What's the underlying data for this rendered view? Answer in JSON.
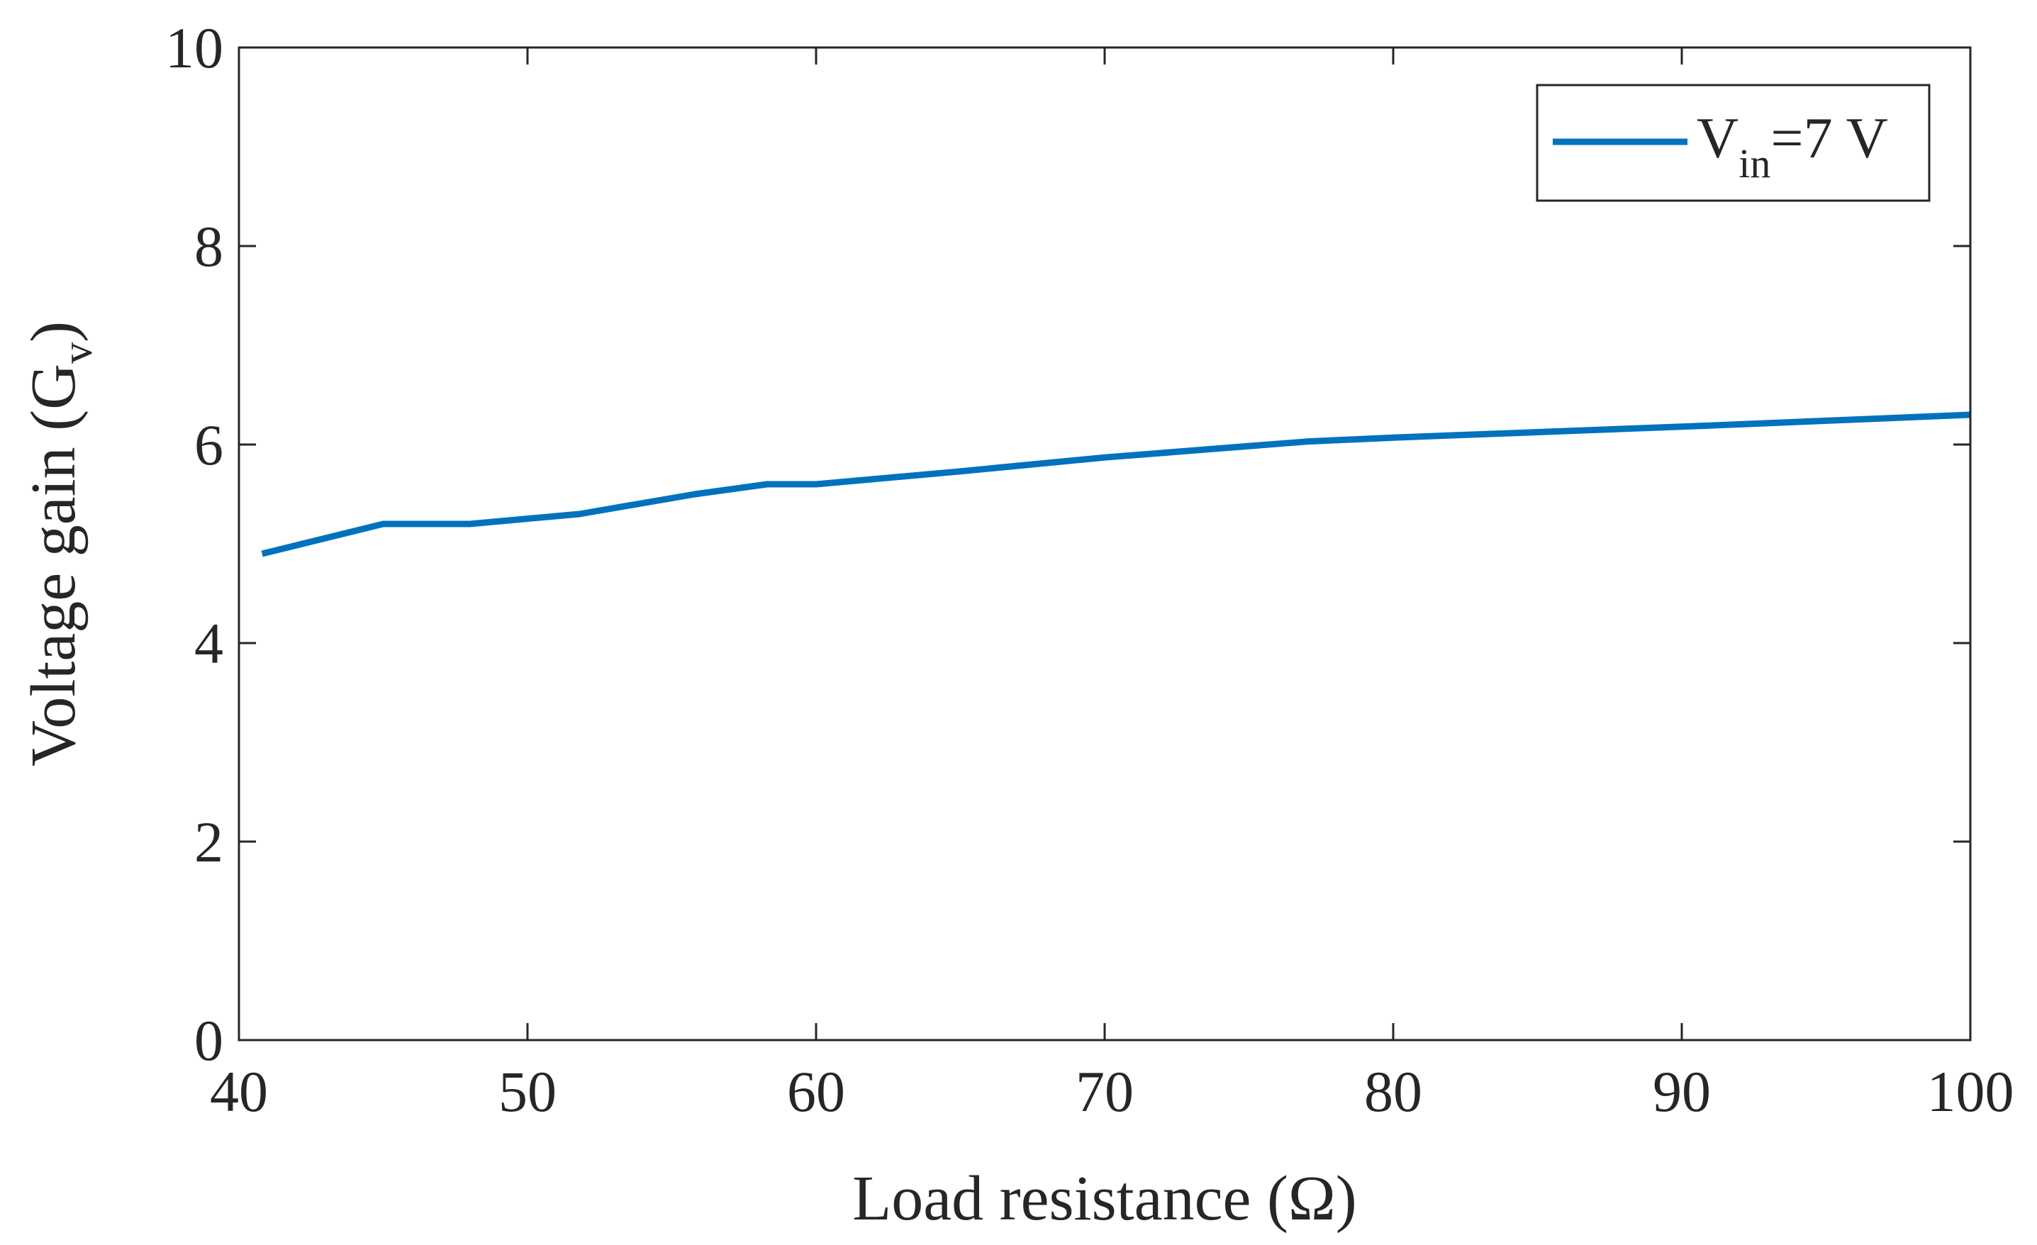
{
  "chart_data": {
    "type": "line",
    "title": "",
    "xlabel": "Load resistance (Ω)",
    "ylabel": {
      "main": "Voltage gain (G",
      "sub": "v",
      "close": ")"
    },
    "xlim": [
      40,
      100
    ],
    "ylim": [
      0,
      10
    ],
    "xticks": [
      40,
      50,
      60,
      70,
      80,
      90,
      100
    ],
    "yticks": [
      0,
      2,
      4,
      6,
      8,
      10
    ],
    "grid": false,
    "legend_position": "top-right",
    "series": [
      {
        "name": "V_in=7 V",
        "legend": {
          "main": "V",
          "sub": "in",
          "rest": "=7 V"
        },
        "color": "#0072BD",
        "x": [
          40.8,
          45.0,
          48.0,
          51.8,
          55.8,
          58.3,
          60.0,
          65.0,
          70.0,
          77.0,
          80.0,
          90.0,
          100.0
        ],
        "y": [
          4.9,
          5.2,
          5.2,
          5.3,
          5.5,
          5.6,
          5.6,
          5.73,
          5.87,
          6.03,
          6.07,
          6.18,
          6.3
        ]
      }
    ]
  }
}
